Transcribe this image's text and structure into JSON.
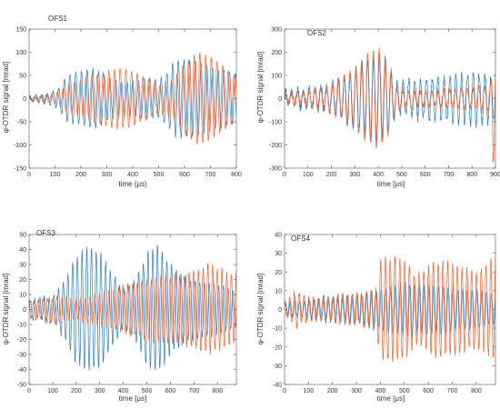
{
  "figure": {
    "panels": [
      {
        "id": "ofs1",
        "title": "OFS1",
        "xlabel": "time (μs)",
        "ylabel": "φ-OTDR signal  [mrad]"
      },
      {
        "id": "ofs2",
        "title": "OFS2",
        "xlabel": "time  [μs]",
        "ylabel": "φ-OTDR signal  [mrad]"
      },
      {
        "id": "ofs3",
        "title": "OFS3",
        "xlabel": "time  [μs]",
        "ylabel": "φ-OTDR signal [mrad]"
      },
      {
        "id": "ofs4",
        "title": "OFS4",
        "xlabel": "time  [μs]",
        "ylabel": "φ-OTDR signal [mrad]"
      }
    ],
    "colors": {
      "series_a": "#2a7fc1",
      "series_b": "#f2622a",
      "axis": "#555555",
      "text": "#333333"
    }
  },
  "chart_data": [
    {
      "type": "line",
      "title": "OFS1",
      "xlabel": "time (μs)",
      "ylabel": "φ-OTDR signal  [mrad]",
      "xlim": [
        0,
        800
      ],
      "ylim": [
        -150,
        150
      ],
      "xticks": [
        0,
        100,
        200,
        300,
        400,
        500,
        600,
        700,
        800
      ],
      "yticks": [
        -150,
        -100,
        -50,
        0,
        50,
        100,
        150
      ],
      "grid": false,
      "legend": "none",
      "series": [
        {
          "color": "#2a7fc1",
          "freq": 0.0455,
          "phase": 0.3,
          "noise": 4,
          "env": [
            [
              0,
              5
            ],
            [
              50,
              8
            ],
            [
              100,
              15
            ],
            [
              150,
              50
            ],
            [
              200,
              60
            ],
            [
              260,
              65
            ],
            [
              300,
              45
            ],
            [
              350,
              40
            ],
            [
              400,
              35
            ],
            [
              450,
              45
            ],
            [
              500,
              40
            ],
            [
              530,
              55
            ],
            [
              560,
              80
            ],
            [
              600,
              85
            ],
            [
              650,
              80
            ],
            [
              700,
              70
            ],
            [
              750,
              60
            ],
            [
              800,
              55
            ]
          ]
        },
        {
          "color": "#f2622a",
          "freq": 0.0455,
          "phase": 1.6,
          "noise": 3,
          "env": [
            [
              0,
              3
            ],
            [
              50,
              5
            ],
            [
              100,
              10
            ],
            [
              150,
              30
            ],
            [
              200,
              40
            ],
            [
              250,
              50
            ],
            [
              300,
              60
            ],
            [
              350,
              65
            ],
            [
              400,
              60
            ],
            [
              450,
              45
            ],
            [
              500,
              30
            ],
            [
              550,
              40
            ],
            [
              600,
              75
            ],
            [
              650,
              100
            ],
            [
              700,
              90
            ],
            [
              750,
              70
            ],
            [
              800,
              45
            ]
          ]
        }
      ]
    },
    {
      "type": "line",
      "title": "OFS2",
      "xlabel": "time  [μs]",
      "ylabel": "φ-OTDR signal  [mrad]",
      "xlim": [
        0,
        900
      ],
      "ylim": [
        -300,
        300
      ],
      "xticks": [
        0,
        100,
        200,
        300,
        400,
        500,
        600,
        700,
        800,
        900
      ],
      "yticks": [
        -300,
        -200,
        -100,
        0,
        100,
        200,
        300
      ],
      "grid": false,
      "legend": "none",
      "series": [
        {
          "color": "#2a7fc1",
          "freq": 0.04,
          "phase": 0.2,
          "noise": 22,
          "env": [
            [
              0,
              30
            ],
            [
              100,
              40
            ],
            [
              200,
              60
            ],
            [
              300,
              120
            ],
            [
              350,
              170
            ],
            [
              400,
              200
            ],
            [
              440,
              150
            ],
            [
              480,
              60
            ],
            [
              550,
              80
            ],
            [
              650,
              90
            ],
            [
              750,
              100
            ],
            [
              850,
              110
            ],
            [
              900,
              80
            ]
          ]
        },
        {
          "color": "#f2622a",
          "freq": 0.04,
          "phase": 0.6,
          "noise": 15,
          "env": [
            [
              0,
              20
            ],
            [
              100,
              25
            ],
            [
              200,
              60
            ],
            [
              300,
              130
            ],
            [
              350,
              180
            ],
            [
              400,
              210
            ],
            [
              440,
              160
            ],
            [
              480,
              40
            ],
            [
              550,
              30
            ],
            [
              650,
              35
            ],
            [
              750,
              40
            ],
            [
              850,
              50
            ],
            [
              880,
              60
            ],
            [
              890,
              280
            ],
            [
              900,
              200
            ]
          ]
        }
      ]
    },
    {
      "type": "line",
      "title": "OFS3",
      "xlabel": "time  [μs]",
      "ylabel": "φ-OTDR signal [mrad]",
      "xlim": [
        0,
        880
      ],
      "ylim": [
        -50,
        50
      ],
      "xticks": [
        0,
        100,
        200,
        300,
        400,
        500,
        600,
        700,
        800
      ],
      "yticks": [
        -50,
        -40,
        -30,
        -20,
        -10,
        0,
        10,
        20,
        30,
        40,
        50
      ],
      "grid": false,
      "legend": "none",
      "series": [
        {
          "color": "#2a7fc1",
          "freq": 0.05,
          "phase": 0.0,
          "noise": 2,
          "env": [
            [
              0,
              6
            ],
            [
              100,
              8
            ],
            [
              150,
              20
            ],
            [
              200,
              35
            ],
            [
              250,
              42
            ],
            [
              300,
              38
            ],
            [
              350,
              25
            ],
            [
              400,
              12
            ],
            [
              450,
              20
            ],
            [
              500,
              38
            ],
            [
              550,
              42
            ],
            [
              600,
              30
            ],
            [
              650,
              22
            ],
            [
              700,
              20
            ],
            [
              800,
              16
            ],
            [
              880,
              12
            ]
          ]
        },
        {
          "color": "#f2622a",
          "freq": 0.05,
          "phase": 1.9,
          "noise": 2,
          "env": [
            [
              0,
              6
            ],
            [
              100,
              8
            ],
            [
              200,
              7
            ],
            [
              300,
              10
            ],
            [
              400,
              15
            ],
            [
              500,
              20
            ],
            [
              600,
              22
            ],
            [
              700,
              25
            ],
            [
              760,
              30
            ],
            [
              800,
              28
            ],
            [
              880,
              22
            ]
          ]
        }
      ]
    },
    {
      "type": "line",
      "title": "OFS4",
      "xlabel": "time  [μs]",
      "ylabel": "φ-OTDR signal [mrad]",
      "xlim": [
        0,
        880
      ],
      "ylim": [
        -40,
        40
      ],
      "xticks": [
        0,
        100,
        200,
        300,
        400,
        500,
        600,
        700,
        800
      ],
      "yticks": [
        -40,
        -30,
        -20,
        -10,
        0,
        10,
        20,
        30,
        40
      ],
      "grid": false,
      "legend": "none",
      "series": [
        {
          "color": "#2a7fc1",
          "freq": 0.05,
          "phase": 0.5,
          "noise": 1.5,
          "env": [
            [
              0,
              3
            ],
            [
              100,
              5
            ],
            [
              200,
              7
            ],
            [
              300,
              8
            ],
            [
              400,
              10
            ],
            [
              450,
              12
            ],
            [
              500,
              14
            ],
            [
              600,
              13
            ],
            [
              700,
              12
            ],
            [
              800,
              10
            ],
            [
              880,
              8
            ]
          ]
        },
        {
          "color": "#f2622a",
          "freq": 0.05,
          "phase": 1.3,
          "noise": 2,
          "env": [
            [
              0,
              3
            ],
            [
              50,
              10
            ],
            [
              100,
              5
            ],
            [
              200,
              6
            ],
            [
              300,
              7
            ],
            [
              380,
              10
            ],
            [
              400,
              26
            ],
            [
              450,
              28
            ],
            [
              500,
              27
            ],
            [
              550,
              18
            ],
            [
              600,
              22
            ],
            [
              650,
              26
            ],
            [
              700,
              24
            ],
            [
              750,
              22
            ],
            [
              800,
              20
            ],
            [
              850,
              24
            ],
            [
              880,
              28
            ]
          ]
        }
      ]
    }
  ]
}
